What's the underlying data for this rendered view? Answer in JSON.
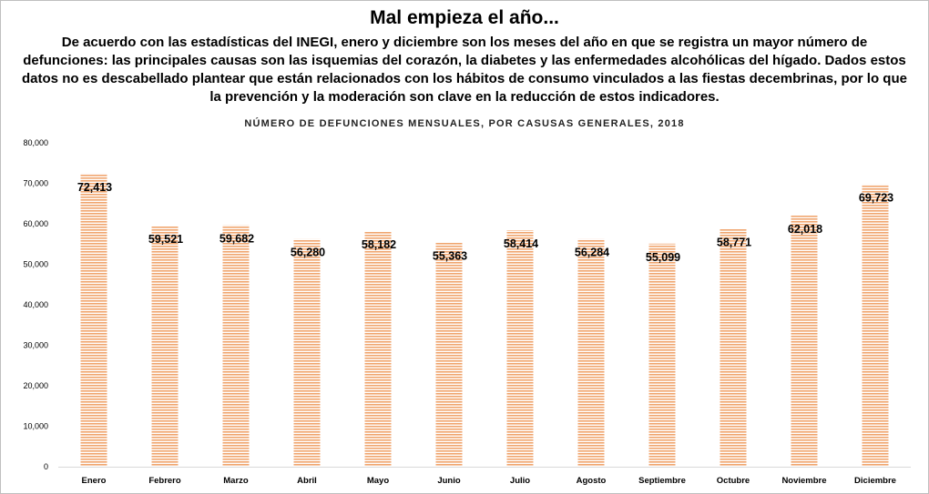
{
  "title": "Mal empieza el año...",
  "subtitle": "De acuerdo con las estadísticas del INEGI, enero y diciembre son los meses del año en que se registra un mayor número de defunciones: las principales causas son las isquemias del corazón, la diabetes y las enfermedades alcohólicas del hígado. Dados estos datos no es descabellado plantear que están relacionados con los hábitos de consumo vinculados a las fiestas decembrinas, por lo que la prevención y la moderación son clave en la reducción de estos indicadores.",
  "chart_data": {
    "type": "bar",
    "title": "NÚMERO DE DEFUNCIONES MENSUALES, POR CASUSAS GENERALES, 2018",
    "xlabel": "",
    "ylabel": "",
    "categories": [
      "Enero",
      "Febrero",
      "Marzo",
      "Abril",
      "Mayo",
      "Junio",
      "Julio",
      "Agosto",
      "Septiembre",
      "Octubre",
      "Noviembre",
      "Diciembre"
    ],
    "values": [
      72413,
      59521,
      59682,
      56280,
      58182,
      55363,
      58414,
      56284,
      55099,
      58771,
      62018,
      69723
    ],
    "value_labels": [
      "72,413",
      "59,521",
      "59,682",
      "56,280",
      "58,182",
      "55,363",
      "58,414",
      "56,284",
      "55,099",
      "58,771",
      "62,018",
      "69,723"
    ],
    "ylim": [
      0,
      80000
    ],
    "yticks": [
      0,
      10000,
      20000,
      30000,
      40000,
      50000,
      60000,
      70000,
      80000
    ],
    "ytick_labels": [
      "0",
      "10,000",
      "20,000",
      "30,000",
      "40,000",
      "50,000",
      "60,000",
      "70,000",
      "80,000"
    ],
    "grid": false,
    "legend": "none",
    "bar_color": "#f0a56e",
    "bar_stripe_color": "#ffffff"
  }
}
